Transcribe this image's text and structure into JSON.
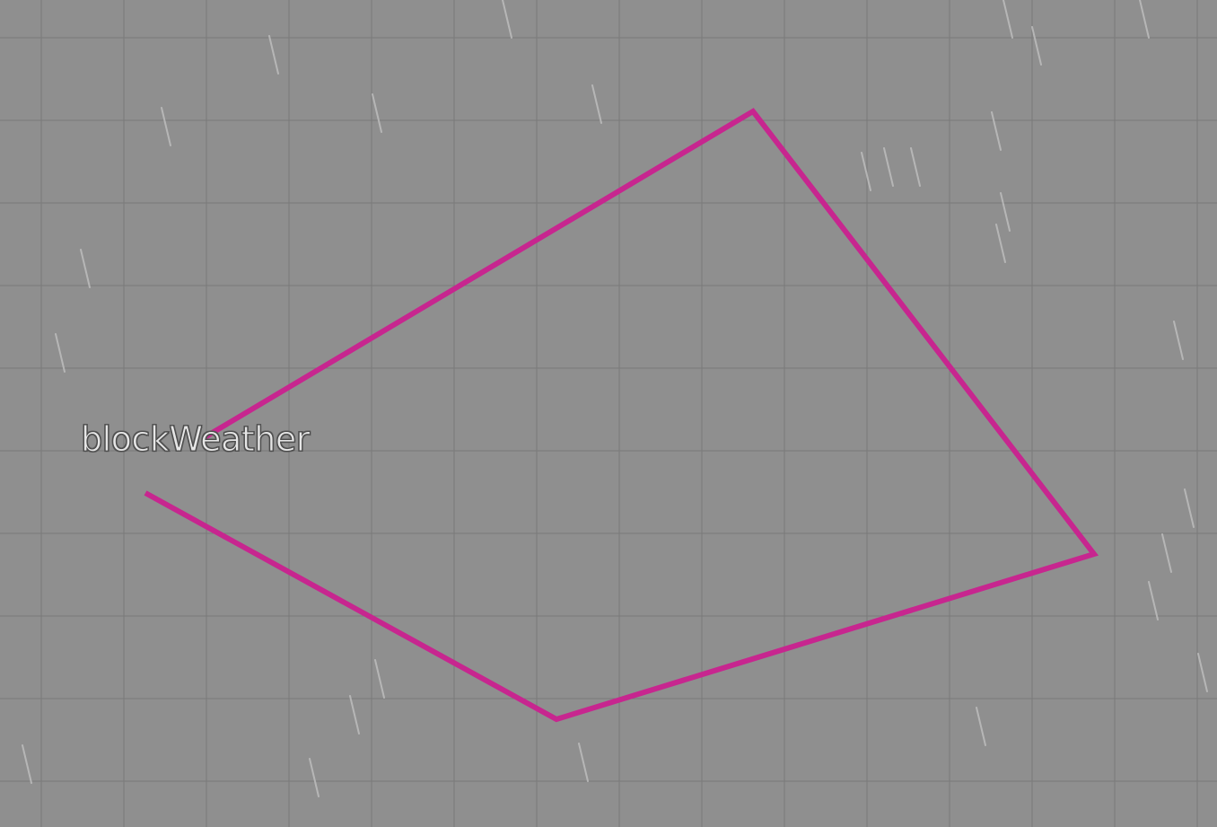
{
  "zone": {
    "label": "blockWeather",
    "outline_color": "#c7268f"
  },
  "scene": {
    "background_color": "#8f8f8f",
    "grid_color": "#7a7a7a",
    "rain_color": "#c4c4c4",
    "weather": "rain"
  }
}
